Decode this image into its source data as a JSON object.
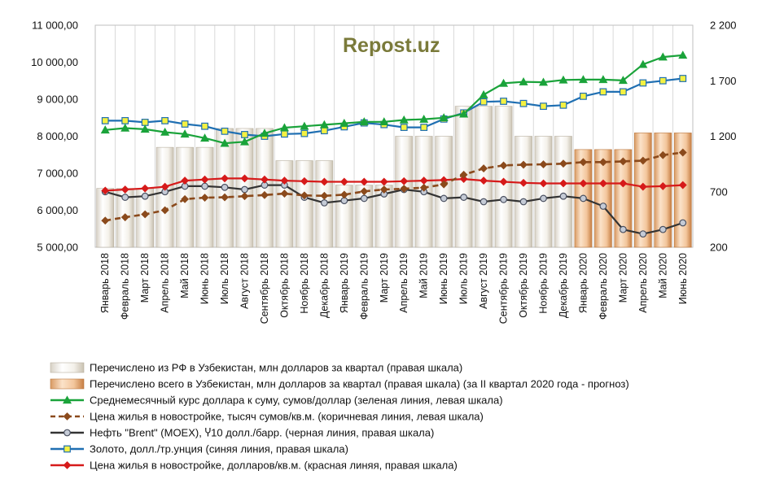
{
  "chart_data": {
    "type": "bar+line",
    "watermark": "Repost.uz",
    "categories": [
      "Январь 2018",
      "Февраль 2018",
      "Март 2018",
      "Апрель 2018",
      "Май 2018",
      "Июнь 2018",
      "Июль 2018",
      "Август 2018",
      "Сентябрь 2018",
      "Октябрь 2018",
      "Ноябрь 2018",
      "Декабрь 2018",
      "Январь 2019",
      "Февраль 2019",
      "Март 2019",
      "Апрель 2019",
      "Май 2019",
      "Июнь 2019",
      "Июль 2019",
      "Август 2019",
      "Сентябрь 2019",
      "Октябрь 2019",
      "Ноябрь 2019",
      "Декабрь 2019",
      "Январь 2020",
      "Февраль 2020",
      "Март 2020",
      "Апрель 2020",
      "Май 2020",
      "Июнь 2020"
    ],
    "left_axis": {
      "min": 5000,
      "max": 11000,
      "ticks": [
        "5 000,00",
        "6 000,00",
        "7 000,00",
        "8 000,00",
        "9 000,00",
        "10 000,00",
        "11 000,00"
      ]
    },
    "right_axis": {
      "min": 200,
      "max": 2200,
      "ticks": [
        "200",
        "700",
        "1 200",
        "1 700",
        "2 200"
      ]
    },
    "bars": [
      {
        "name": "Перечислено из РФ в Узбекистан, млн долларов за квартал (правая шкала)",
        "style": "white",
        "values": [
          730,
          730,
          730,
          1100,
          1100,
          1100,
          1270,
          1270,
          1270,
          980,
          980,
          980,
          760,
          760,
          760,
          1200,
          1200,
          1200,
          1470,
          1470,
          1470,
          1200,
          1200,
          1200,
          null,
          null,
          null,
          null,
          null,
          null
        ]
      },
      {
        "name": "Перечислено всего в Узбекистан, млн долларов за квартал (правая шкала) (за II квартал 2020 года - прогноз)",
        "style": "orange",
        "values": [
          null,
          null,
          null,
          null,
          null,
          null,
          null,
          null,
          null,
          null,
          null,
          null,
          null,
          null,
          null,
          null,
          null,
          null,
          null,
          null,
          null,
          null,
          null,
          null,
          1080,
          1080,
          1080,
          1230,
          1230,
          1230
        ]
      }
    ],
    "series": [
      {
        "name": "Среднемесячный курс доллара к суму, сумов/доллар (зеленая линия, левая шкала)",
        "axis": "left",
        "color": "#1aa33a",
        "marker": "triangle",
        "values": [
          8170,
          8220,
          8190,
          8110,
          8060,
          7950,
          7810,
          7850,
          8080,
          8230,
          8270,
          8310,
          8350,
          8390,
          8390,
          8440,
          8460,
          8500,
          8600,
          9120,
          9430,
          9470,
          9460,
          9520,
          9530,
          9530,
          9510,
          9940,
          10140,
          10190
        ]
      },
      {
        "name": "Цена жилья в новостройке, тысяч сумов/кв.м. (коричневая линия, левая шкала)",
        "axis": "left",
        "color": "#8b4a1c",
        "marker": "diamond",
        "dashed": true,
        "values": [
          5720,
          5810,
          5890,
          6000,
          6300,
          6340,
          6350,
          6380,
          6410,
          6450,
          6400,
          6390,
          6420,
          6510,
          6560,
          6580,
          6610,
          6700,
          6960,
          7130,
          7210,
          7230,
          7240,
          7260,
          7300,
          7300,
          7320,
          7340,
          7490,
          7560
        ]
      },
      {
        "name": "Нефть \"Brent\" (MOEX), Ⴤ10 долл./барр. (черная линия, правая шкала)",
        "axis": "right",
        "color": "#333333",
        "marker": "circle",
        "values": [
          700,
          650,
          660,
          700,
          750,
          750,
          740,
          720,
          760,
          760,
          650,
          600,
          620,
          640,
          680,
          720,
          700,
          640,
          650,
          610,
          630,
          610,
          640,
          660,
          640,
          570,
          360,
          320,
          360,
          420
        ]
      },
      {
        "name": "Золото, долл./тр.унция (синяя линия, правая шкала)",
        "axis": "right",
        "color": "#1f6fb2",
        "marker": "square",
        "values": [
          1340,
          1340,
          1325,
          1340,
          1310,
          1290,
          1245,
          1215,
          1200,
          1220,
          1225,
          1250,
          1285,
          1320,
          1305,
          1280,
          1280,
          1355,
          1410,
          1510,
          1515,
          1495,
          1470,
          1480,
          1560,
          1600,
          1600,
          1680,
          1700,
          1720
        ]
      },
      {
        "name": "Цена жилья в новостройке, долларов/кв.м. (красная линяя, правая шкала)",
        "axis": "right",
        "color": "#d61a1a",
        "marker": "diamond",
        "values": [
          710,
          720,
          730,
          745,
          800,
          810,
          820,
          820,
          810,
          800,
          795,
          790,
          790,
          790,
          790,
          795,
          800,
          805,
          815,
          800,
          790,
          780,
          775,
          775,
          775,
          775,
          775,
          745,
          750,
          760
        ]
      }
    ],
    "legend": [
      {
        "label": "Перечислено из РФ в Узбекистан, млн долларов за квартал (правая шкала)",
        "kind": "bar-white"
      },
      {
        "label": "Перечислено всего в Узбекистан, млн долларов за квартал (правая шкала) (за II квартал 2020 года - прогноз)",
        "kind": "bar-orange"
      },
      {
        "label": "Среднемесячный курс доллара к суму, сумов/доллар (зеленая линия, левая шкала)",
        "kind": "line",
        "color": "#1aa33a",
        "marker": "triangle"
      },
      {
        "label": "Цена жилья в новостройке, тысяч сумов/кв.м. (коричневая линия, левая шкала)",
        "kind": "dash",
        "color": "#8b4a1c",
        "marker": "diamond"
      },
      {
        "label": "Нефть \"Brent\" (MOEX), Ⴤ10 долл./барр. (черная линия, правая шкала)",
        "kind": "line",
        "color": "#333333",
        "marker": "circle"
      },
      {
        "label": "Золото, долл./тр.унция (синяя линия, правая шкала)",
        "kind": "line",
        "color": "#1f6fb2",
        "marker": "square"
      },
      {
        "label": "Цена жилья в новостройке, долларов/кв.м. (красная линяя, правая шкала)",
        "kind": "line",
        "color": "#d61a1a",
        "marker": "diamond"
      }
    ]
  }
}
